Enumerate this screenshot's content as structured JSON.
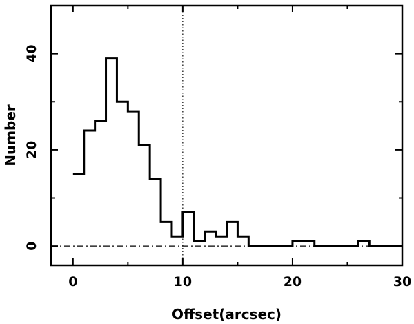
{
  "chart_data": {
    "type": "histogram",
    "xlabel": "Offset(arcsec)",
    "ylabel": "Number",
    "xlim": [
      -2,
      30
    ],
    "ylim": [
      -4,
      50
    ],
    "x_ticks": [
      0,
      10,
      20,
      30
    ],
    "y_ticks": [
      0,
      20,
      40
    ],
    "bin_width": 1,
    "bin_edges": [
      0,
      1,
      2,
      3,
      4,
      5,
      6,
      7,
      8,
      9,
      10,
      11,
      12,
      13,
      14,
      15,
      16,
      17,
      18,
      19,
      20,
      21,
      22,
      23,
      24,
      25,
      26,
      27,
      28,
      29,
      30
    ],
    "counts": [
      15,
      24,
      26,
      39,
      30,
      28,
      21,
      14,
      5,
      2,
      7,
      1,
      3,
      2,
      5,
      2,
      0,
      0,
      0,
      0,
      1,
      1,
      0,
      0,
      0,
      0,
      1,
      0,
      0,
      0
    ],
    "reference_lines": [
      {
        "orientation": "vertical",
        "value": 10,
        "style": "dotted"
      },
      {
        "orientation": "horizontal",
        "value": 0,
        "style": "dash-dot"
      }
    ],
    "grid": false,
    "legend": "none"
  }
}
